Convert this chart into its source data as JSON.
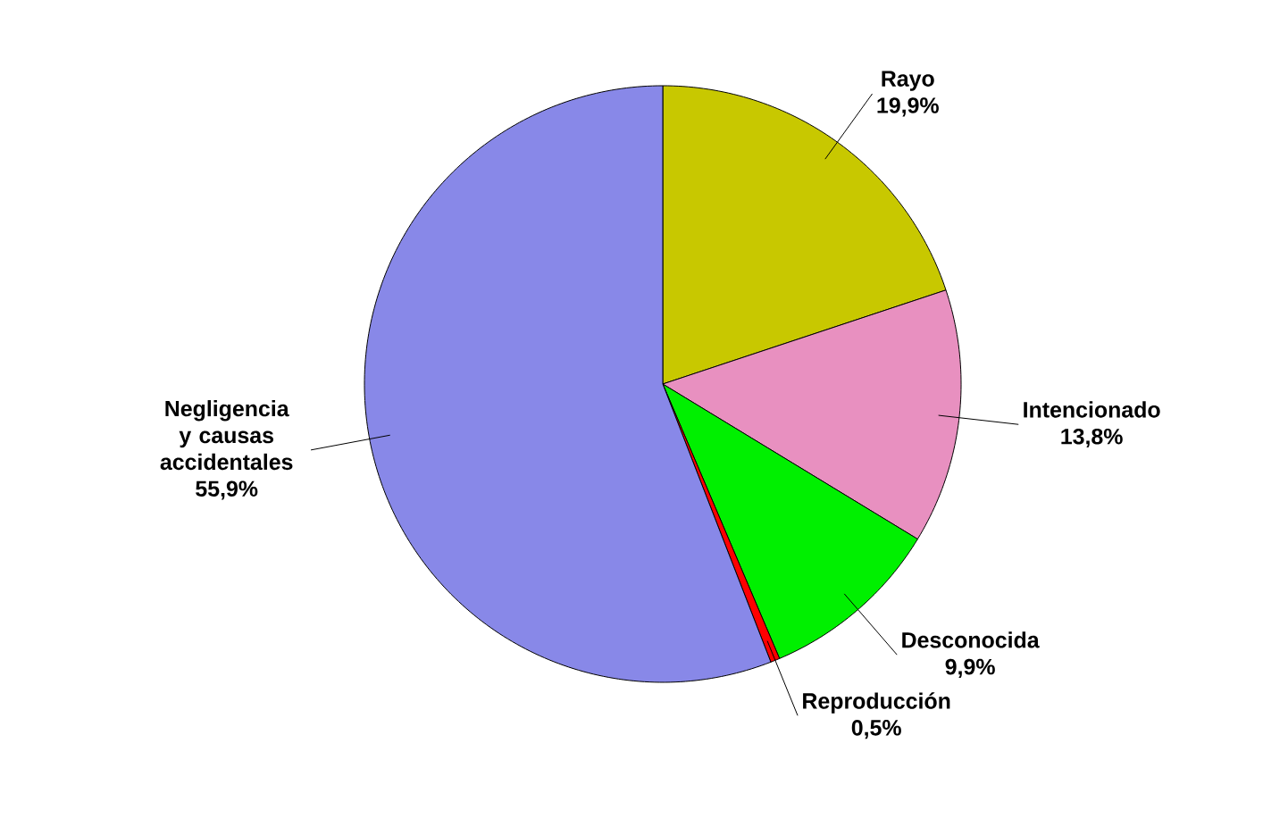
{
  "chart_data": {
    "type": "pie",
    "categories": [
      "Rayo",
      "Intencionado",
      "Desconocida",
      "Reproducción",
      "Negligencia y causas accidentales"
    ],
    "values": [
      19.9,
      13.8,
      9.9,
      0.5,
      55.9
    ],
    "value_labels": [
      "19,9%",
      "13,8%",
      "9,9%",
      "0,5%",
      "55,9%"
    ],
    "colors": [
      "#c8c800",
      "#e890c0",
      "#00f000",
      "#ff0000",
      "#8888e8"
    ]
  }
}
